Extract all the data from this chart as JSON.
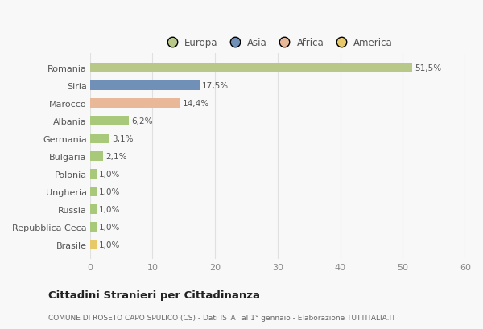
{
  "categories": [
    "Brasile",
    "Repubblica Ceca",
    "Russia",
    "Ungheria",
    "Polonia",
    "Bulgaria",
    "Germania",
    "Albania",
    "Marocco",
    "Siria",
    "Romania"
  ],
  "values": [
    1.0,
    1.0,
    1.0,
    1.0,
    1.0,
    2.1,
    3.1,
    6.2,
    14.4,
    17.5,
    51.5
  ],
  "labels": [
    "1,0%",
    "1,0%",
    "1,0%",
    "1,0%",
    "1,0%",
    "2,1%",
    "3,1%",
    "6,2%",
    "14,4%",
    "17,5%",
    "51,5%"
  ],
  "colors": [
    "#e8c96a",
    "#a8c87a",
    "#a8c87a",
    "#a8c87a",
    "#a8c87a",
    "#a8c87a",
    "#a8c87a",
    "#a8c87a",
    "#e8b898",
    "#7090b8",
    "#b8c888"
  ],
  "legend_labels": [
    "Europa",
    "Asia",
    "Africa",
    "America"
  ],
  "legend_colors": [
    "#b8c888",
    "#7090b8",
    "#e8b898",
    "#e8c96a"
  ],
  "title": "Cittadini Stranieri per Cittadinanza",
  "subtitle": "COMUNE DI ROSETO CAPO SPULICO (CS) - Dati ISTAT al 1° gennaio - Elaborazione TUTTITALIA.IT",
  "xlim": [
    0,
    60
  ],
  "xticks": [
    0,
    10,
    20,
    30,
    40,
    50,
    60
  ],
  "bg_color": "#f8f8f8",
  "grid_color": "#e0e0e0"
}
